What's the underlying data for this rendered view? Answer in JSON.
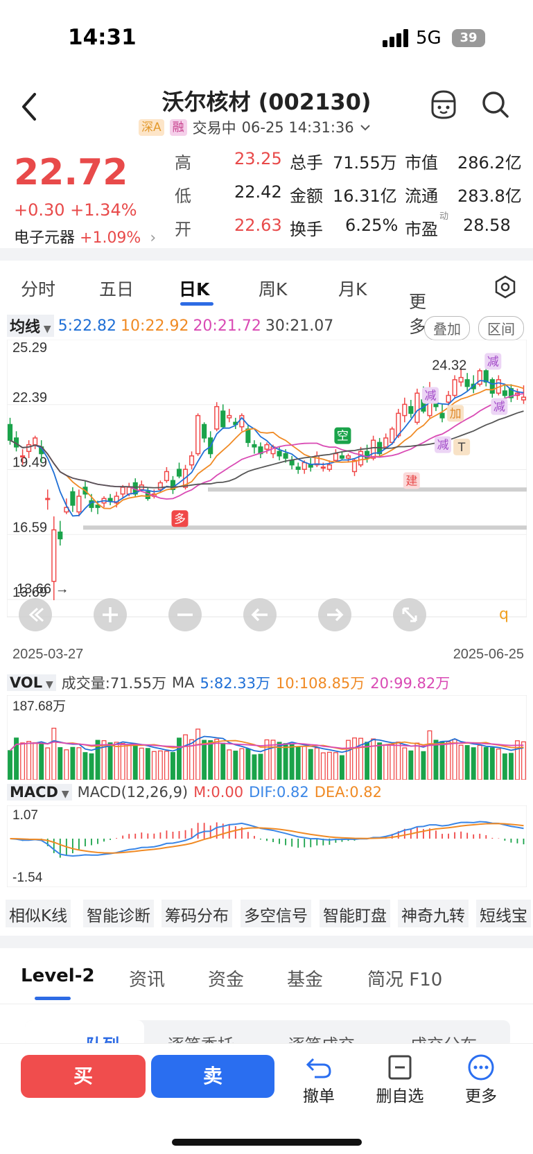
{
  "status": {
    "time": "14:31",
    "network": "5G",
    "battery": "39"
  },
  "header": {
    "title": "沃尔核材 (002130)",
    "tag_market": "深A",
    "tag_margin": "融",
    "trade_status": "交易中",
    "datetime": "06-25 14:31:36"
  },
  "quote": {
    "price": "22.72",
    "change": "+0.30 +1.34%",
    "sector_name": "电子元器",
    "sector_change": "+1.09%",
    "rows": [
      {
        "l1": "高",
        "v1": "23.25",
        "l2": "总手",
        "v2": "71.55万",
        "l3": "市值",
        "v3": "286.2亿"
      },
      {
        "l1": "低",
        "v1": "22.42",
        "l2": "金额",
        "v2": "16.31亿",
        "l3": "流通",
        "v3": "283.8亿"
      },
      {
        "l1": "开",
        "v1": "22.63",
        "l2": "换手",
        "v2": "6.25%",
        "l3": "市盈",
        "v3": "28.58",
        "l3_sup": "动"
      }
    ]
  },
  "ktabs": [
    "分时",
    "五日",
    "日K",
    "周K",
    "月K",
    "更多"
  ],
  "ma": {
    "label": "均线",
    "ma5": "5:22.82",
    "ma10": "10:22.92",
    "ma20": "20:21.72",
    "ma30": "30:21.07",
    "btn_overlay": "叠加",
    "btn_range": "区间",
    "colors": {
      "ma5": "#1f6fd6",
      "ma10": "#f08a24",
      "ma20": "#d94ab4",
      "ma30": "#555555"
    }
  },
  "chart_data": {
    "type": "candlestick",
    "y_ticks": [
      "25.29",
      "22.39",
      "19.49",
      "16.59",
      "13.69"
    ],
    "ylim": [
      13.69,
      25.29
    ],
    "x_start": "2025-03-27",
    "x_end": "2025-06-25",
    "high_label": "24.32",
    "low_label": "13.66",
    "signals": [
      "多",
      "空",
      "建",
      "减",
      "加",
      "减",
      "减",
      "T",
      "减"
    ],
    "candles": [
      [
        21.5,
        20.8,
        21.8,
        20.6
      ],
      [
        20.9,
        20.5,
        21.2,
        20.3
      ],
      [
        20.1,
        20.1,
        20.4,
        19.7
      ],
      [
        20.3,
        20.6,
        20.8,
        20.0
      ],
      [
        20.6,
        20.9,
        21.0,
        20.4
      ],
      [
        20.5,
        20.2,
        20.8,
        19.8
      ],
      [
        18.2,
        18.2,
        18.6,
        17.7
      ],
      [
        14.5,
        16.8,
        17.4,
        13.66
      ],
      [
        16.7,
        16.4,
        17.2,
        16.1
      ],
      [
        17.6,
        17.8,
        18.2,
        17.5
      ],
      [
        18.5,
        17.9,
        18.7,
        17.6
      ],
      [
        17.6,
        18.3,
        18.6,
        17.4
      ],
      [
        18.7,
        18.4,
        19.0,
        18.2
      ],
      [
        18.1,
        17.8,
        18.4,
        17.6
      ],
      [
        17.9,
        17.8,
        18.1,
        17.5
      ],
      [
        18.0,
        18.2,
        18.3,
        17.8
      ],
      [
        18.2,
        18.1,
        18.4,
        17.9
      ],
      [
        18.0,
        18.3,
        18.5,
        17.8
      ],
      [
        18.4,
        18.7,
        18.8,
        18.2
      ],
      [
        18.4,
        18.7,
        18.9,
        18.3
      ],
      [
        18.9,
        18.4,
        19.1,
        18.3
      ],
      [
        18.6,
        18.8,
        19.0,
        18.5
      ],
      [
        18.5,
        18.2,
        18.7,
        18.1
      ],
      [
        18.3,
        18.4,
        18.6,
        18.2
      ],
      [
        18.6,
        18.9,
        19.0,
        18.5
      ],
      [
        19.0,
        19.4,
        19.6,
        18.9
      ],
      [
        19.0,
        18.6,
        19.2,
        18.4
      ],
      [
        19.5,
        19.2,
        19.8,
        19.1
      ],
      [
        18.7,
        19.5,
        19.7,
        18.6
      ],
      [
        19.7,
        20.1,
        20.3,
        19.5
      ],
      [
        20.2,
        21.9,
        22.0,
        20.1
      ],
      [
        21.5,
        20.9,
        21.6,
        20.7
      ],
      [
        20.9,
        20.2,
        21.2,
        20.0
      ],
      [
        21.3,
        22.3,
        22.5,
        21.2
      ],
      [
        22.1,
        21.4,
        22.4,
        21.3
      ],
      [
        21.8,
        21.9,
        22.2,
        21.6
      ],
      [
        21.6,
        21.5,
        21.8,
        21.3
      ],
      [
        21.4,
        21.9,
        22.0,
        21.2
      ],
      [
        21.3,
        20.7,
        21.5,
        20.5
      ],
      [
        20.6,
        20.5,
        20.8,
        20.2
      ],
      [
        20.5,
        20.2,
        20.7,
        20.0
      ],
      [
        20.4,
        20.6,
        20.7,
        20.2
      ],
      [
        20.2,
        20.5,
        20.6,
        20.0
      ],
      [
        20.3,
        20.1,
        20.5,
        19.9
      ],
      [
        20.2,
        20.0,
        20.4,
        19.8
      ],
      [
        19.9,
        19.7,
        20.1,
        19.5
      ],
      [
        19.6,
        19.5,
        19.8,
        19.3
      ],
      [
        19.5,
        19.8,
        19.9,
        19.3
      ],
      [
        19.7,
        19.6,
        20.0,
        19.4
      ],
      [
        19.7,
        20.1,
        20.3,
        19.6
      ],
      [
        19.6,
        19.6,
        19.8,
        19.4
      ],
      [
        19.5,
        19.7,
        19.9,
        19.4
      ],
      [
        19.9,
        20.2,
        20.4,
        19.8
      ],
      [
        20.1,
        20.0,
        20.3,
        19.9
      ],
      [
        20.0,
        20.1,
        20.2,
        19.8
      ],
      [
        19.4,
        19.9,
        20.0,
        19.2
      ],
      [
        19.7,
        20.3,
        20.5,
        19.6
      ],
      [
        20.3,
        20.0,
        20.6,
        19.8
      ],
      [
        20.0,
        20.8,
        21.0,
        19.9
      ],
      [
        20.7,
        20.2,
        20.9,
        20.1
      ],
      [
        20.5,
        20.9,
        21.1,
        20.4
      ],
      [
        20.7,
        21.3,
        21.4,
        20.6
      ],
      [
        21.0,
        22.0,
        22.2,
        20.9
      ],
      [
        21.9,
        22.4,
        22.7,
        21.6
      ],
      [
        22.3,
        22.0,
        22.6,
        21.8
      ],
      [
        21.6,
        22.9,
        23.1,
        21.5
      ],
      [
        22.6,
        22.1,
        23.2,
        22.0
      ],
      [
        21.9,
        23.0,
        23.4,
        21.8
      ],
      [
        22.5,
        22.3,
        22.9,
        22.1
      ],
      [
        22.0,
        21.8,
        22.4,
        21.6
      ],
      [
        22.5,
        22.8,
        23.0,
        22.3
      ],
      [
        22.8,
        23.5,
        23.7,
        22.7
      ],
      [
        23.4,
        23.6,
        24.0,
        23.2
      ],
      [
        23.5,
        23.2,
        23.8,
        23.0
      ],
      [
        23.3,
        23.1,
        23.7,
        22.9
      ],
      [
        23.3,
        23.9,
        24.0,
        23.2
      ],
      [
        23.9,
        23.4,
        24.32,
        23.2
      ],
      [
        23.5,
        22.9,
        23.6,
        22.7
      ],
      [
        22.9,
        23.5,
        23.7,
        22.8
      ],
      [
        23.0,
        22.8,
        23.3,
        22.5
      ],
      [
        23.1,
        22.7,
        23.3,
        22.5
      ],
      [
        22.8,
        22.9,
        23.1,
        22.6
      ],
      [
        22.6,
        22.72,
        23.25,
        22.42
      ]
    ]
  },
  "vol": {
    "label": "VOL",
    "title": "成交量:71.55万",
    "ma_label": "MA",
    "ma5": "5:82.33万",
    "ma10": "10:108.85万",
    "ma20": "20:99.82万",
    "max_tick": "187.68万"
  },
  "macd": {
    "label": "MACD",
    "params": "MACD(12,26,9)",
    "m": "M:0.00",
    "dif": "DIF:0.82",
    "dea": "DEA:0.82",
    "top_tick": "1.07",
    "bottom_tick": "-1.54"
  },
  "tools": [
    "相似K线",
    "智能诊断",
    "筹码分布",
    "多空信号",
    "智能盯盘",
    "神奇九转",
    "短线宝"
  ],
  "bottom_tabs": [
    "Level-2",
    "资讯",
    "资金",
    "基金",
    "简况 F10"
  ],
  "sub_tabs": [
    "队列",
    "逐笔委托",
    "逐笔成交",
    "成交分布"
  ],
  "actions": {
    "buy": "买",
    "sell": "卖",
    "cancel": "撤单",
    "remove": "删自选",
    "more": "更多"
  }
}
